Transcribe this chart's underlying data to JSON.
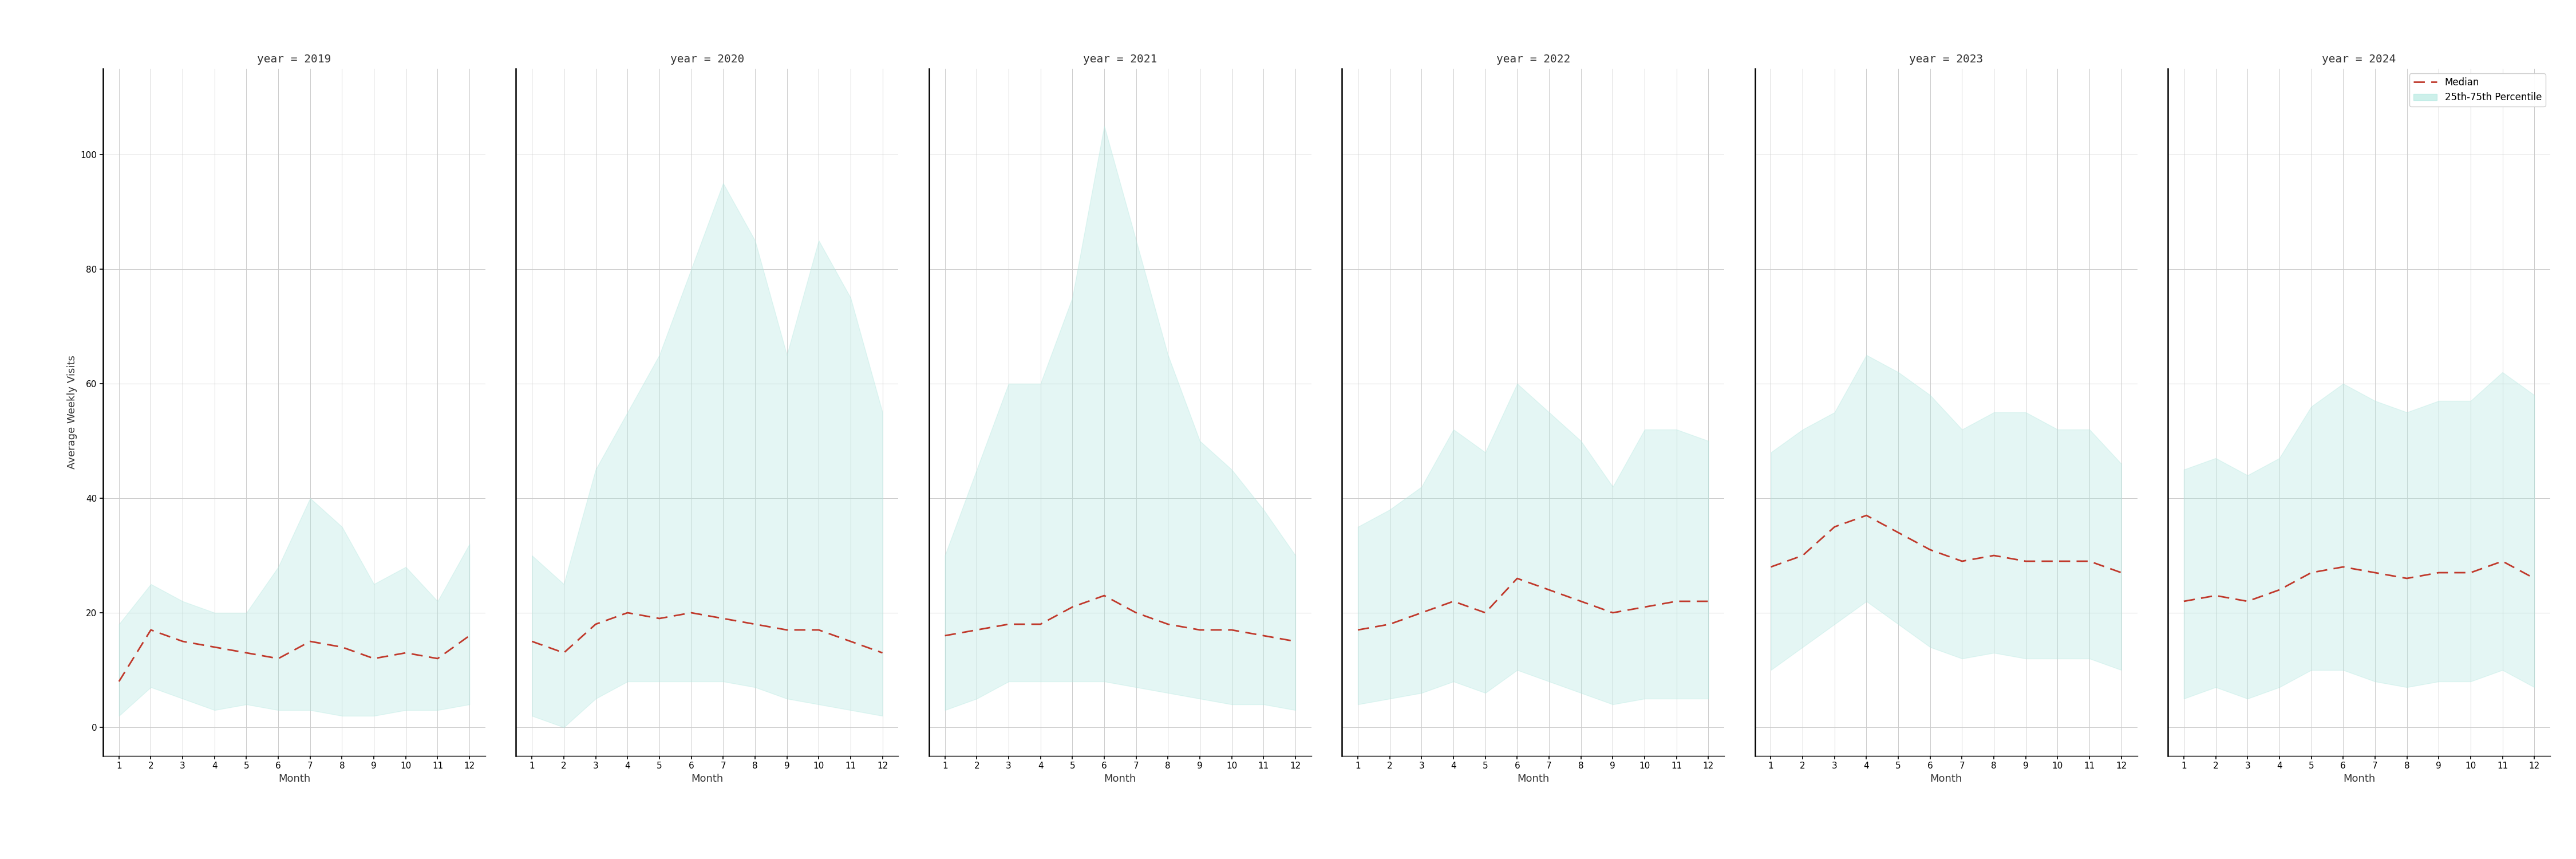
{
  "years": [
    2019,
    2020,
    2021,
    2022,
    2023,
    2024
  ],
  "months": [
    1,
    2,
    3,
    4,
    5,
    6,
    7,
    8,
    9,
    10,
    11,
    12
  ],
  "median": {
    "2019": [
      8,
      17,
      15,
      14,
      13,
      12,
      15,
      14,
      12,
      13,
      12,
      16
    ],
    "2020": [
      15,
      13,
      18,
      20,
      19,
      20,
      19,
      18,
      17,
      17,
      15,
      13
    ],
    "2021": [
      16,
      17,
      18,
      18,
      21,
      23,
      20,
      18,
      17,
      17,
      16,
      15
    ],
    "2022": [
      17,
      18,
      20,
      22,
      20,
      26,
      24,
      22,
      20,
      21,
      22,
      22
    ],
    "2023": [
      28,
      30,
      35,
      37,
      34,
      31,
      29,
      30,
      29,
      29,
      29,
      27
    ],
    "2024": [
      22,
      23,
      22,
      24,
      27,
      28,
      27,
      26,
      27,
      27,
      29,
      26
    ]
  },
  "p25": {
    "2019": [
      2,
      7,
      5,
      3,
      4,
      3,
      3,
      2,
      2,
      3,
      3,
      4
    ],
    "2020": [
      2,
      0,
      5,
      8,
      8,
      8,
      8,
      7,
      5,
      4,
      3,
      2
    ],
    "2021": [
      3,
      5,
      8,
      8,
      8,
      8,
      7,
      6,
      5,
      4,
      4,
      3
    ],
    "2022": [
      4,
      5,
      6,
      8,
      6,
      10,
      8,
      6,
      4,
      5,
      5,
      5
    ],
    "2023": [
      10,
      14,
      18,
      22,
      18,
      14,
      12,
      13,
      12,
      12,
      12,
      10
    ],
    "2024": [
      5,
      7,
      5,
      7,
      10,
      10,
      8,
      7,
      8,
      8,
      10,
      7
    ]
  },
  "p75": {
    "2019": [
      18,
      25,
      22,
      20,
      20,
      28,
      40,
      35,
      25,
      28,
      22,
      32
    ],
    "2020": [
      30,
      25,
      45,
      55,
      65,
      80,
      95,
      85,
      65,
      85,
      75,
      55
    ],
    "2021": [
      30,
      45,
      60,
      60,
      75,
      105,
      85,
      65,
      50,
      45,
      38,
      30
    ],
    "2022": [
      35,
      38,
      42,
      52,
      48,
      60,
      55,
      50,
      42,
      52,
      52,
      50
    ],
    "2023": [
      48,
      52,
      55,
      65,
      62,
      58,
      52,
      55,
      55,
      52,
      52,
      46
    ],
    "2024": [
      45,
      47,
      44,
      47,
      56,
      60,
      57,
      55,
      57,
      57,
      62,
      58
    ]
  },
  "ylim": [
    -5,
    115
  ],
  "yticks": [
    0,
    20,
    40,
    60,
    80,
    100
  ],
  "fill_color": "#b2e8e0",
  "fill_alpha": 0.35,
  "median_color": "#c0392b",
  "grid_color": "#cccccc",
  "background_color": "#ffffff",
  "ylabel": "Average Weekly Visits",
  "xlabel": "Month",
  "legend_median_label": "Median",
  "legend_fill_label": "25th-75th Percentile"
}
